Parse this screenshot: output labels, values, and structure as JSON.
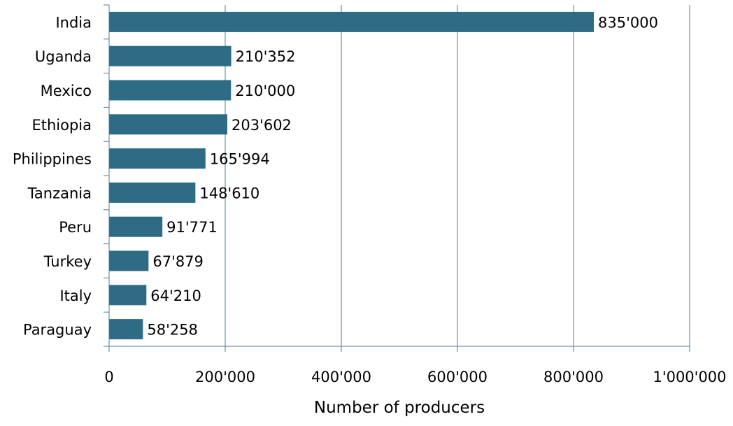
{
  "chart_data": {
    "type": "bar",
    "orientation": "horizontal",
    "title": "",
    "xlabel": "Number of producers",
    "ylabel": "",
    "xlim": [
      0,
      1000000
    ],
    "x_ticks": [
      0,
      200000,
      400000,
      600000,
      800000,
      1000000
    ],
    "x_tick_labels": [
      "0",
      "200'000",
      "400'000",
      "600'000",
      "800'000",
      "1'000'000"
    ],
    "grid": "vertical",
    "categories": [
      "India",
      "Uganda",
      "Mexico",
      "Ethiopia",
      "Philippines",
      "Tanzania",
      "Peru",
      "Turkey",
      "Italy",
      "Paraguay"
    ],
    "values": [
      835000,
      210352,
      210000,
      203602,
      165994,
      148610,
      91771,
      67879,
      64210,
      58258
    ],
    "value_labels": [
      "835'000",
      "210'352",
      "210'000",
      "203'602",
      "165'994",
      "148'610",
      "91'771",
      "67'879",
      "64'210",
      "58'258"
    ],
    "colors": {
      "bar": "#2e6b84",
      "grid": "#4f7e99",
      "axis": "#4f7e99"
    }
  }
}
